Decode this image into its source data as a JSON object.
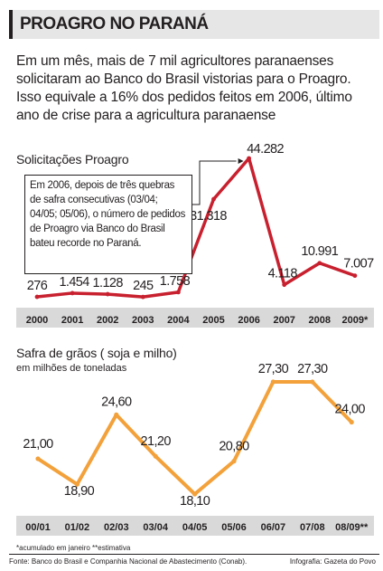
{
  "header": {
    "title": "PROAGRO NO PARANÁ",
    "intro": "Em um mês, mais de 7 mil agricultores paranaenses solicitaram ao Banco do Brasil vistorias para o Proagro. Isso equivale a 16% dos pedidos feitos em 2006, último ano de crise para a agricultura paranaense"
  },
  "colors": {
    "proagro_line": "#c8202e",
    "safra_line": "#f3a13a",
    "axis_band": "#d9d9d9",
    "title_band": "#e6e6e6"
  },
  "note": "Em 2006, depois de três quebras de safra consecutivas (03/04; 04/05; 05/06), o número de pedidos de Proagro via Banco do Brasil bateu recorde no Paraná.",
  "chart_data": [
    {
      "type": "line",
      "title": "Solicitações Proagro",
      "categories": [
        "2000",
        "2001",
        "2002",
        "2003",
        "2004",
        "2005",
        "2006",
        "2007",
        "2008",
        "2009*"
      ],
      "values": [
        276,
        1454,
        1128,
        245,
        1758,
        31318,
        44282,
        4118,
        10991,
        7007
      ],
      "labels": [
        "276",
        "1.454",
        "1.128",
        "245",
        "1.758",
        "31.318",
        "44.282",
        "4.118",
        "10.991",
        "7.007"
      ],
      "ylim": [
        0,
        44282
      ]
    },
    {
      "type": "line",
      "title": "Safra de grãos ( soja e milho)",
      "subtitle": "em milhões de toneladas",
      "categories": [
        "00/01",
        "01/02",
        "02/03",
        "03/04",
        "04/05",
        "05/06",
        "06/07",
        "07/08",
        "08/09**"
      ],
      "values": [
        21.0,
        18.9,
        24.6,
        21.2,
        18.1,
        20.8,
        27.3,
        27.3,
        24.0
      ],
      "labels": [
        "21,00",
        "18,90",
        "24,60",
        "21,20",
        "18,10",
        "20,80",
        "27,30",
        "27,30",
        "24,00"
      ],
      "ylim": [
        18.1,
        27.3
      ]
    }
  ],
  "footer": {
    "notes": "*acumulado em janeiro   **estimativa",
    "source": "Fonte: Banco do Brasil e Companhia Nacional de Abastecimento (Conab).",
    "credit": "Infografia: Gazeta do Povo"
  }
}
